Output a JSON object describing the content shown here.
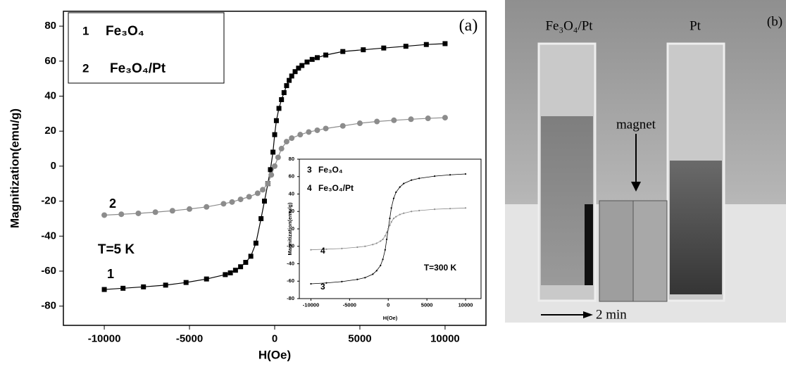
{
  "chart_data": [
    {
      "type": "line",
      "xlabel": "H(Oe)",
      "ylabel": "Magnitization(emu/g)",
      "xlim": [
        -12400,
        12400
      ],
      "ylim": [
        -91,
        88.5
      ],
      "xticks": [
        -10000,
        -5000,
        0,
        5000,
        10000
      ],
      "yticks": [
        -80,
        -60,
        -40,
        -20,
        0,
        20,
        40,
        60,
        80
      ],
      "annotations": [
        "(a)",
        "T=5 K"
      ],
      "series": [
        {
          "name": "Fe₃O₄",
          "label": "1",
          "color": "#000000",
          "marker": "square",
          "x": [
            -10000,
            -8900,
            -7700,
            -6400,
            -5200,
            -4000,
            -2900,
            -2600,
            -2300,
            -2000,
            -1700,
            -1400,
            -1100,
            -800,
            -600,
            -400,
            -250,
            -100,
            0,
            100,
            250,
            400,
            550,
            700,
            850,
            1000,
            1200,
            1400,
            1600,
            1900,
            2200,
            2500,
            3000,
            4000,
            5200,
            6400,
            7700,
            8900,
            10000
          ],
          "values": [
            -70.5,
            -69.8,
            -69,
            -68,
            -66.5,
            -64.5,
            -62,
            -61,
            -59.5,
            -57.5,
            -55,
            -51.5,
            -44,
            -30,
            -20,
            -10,
            -2,
            8,
            18,
            26,
            33,
            38,
            42,
            46,
            49,
            51.5,
            54,
            56,
            57.5,
            59.5,
            61,
            62,
            63.5,
            65.5,
            66.5,
            67.5,
            68.5,
            69.5,
            70
          ]
        },
        {
          "name": "Fe₃O₄/Pt",
          "label": "2",
          "color": "#8c8c8c",
          "marker": "circle",
          "x": [
            -10000,
            -9000,
            -8000,
            -7000,
            -6000,
            -5000,
            -4000,
            -3000,
            -2500,
            -2000,
            -1500,
            -1000,
            -700,
            -400,
            -200,
            0,
            200,
            400,
            700,
            1000,
            1500,
            2000,
            2500,
            3000,
            4000,
            5000,
            6000,
            7000,
            8000,
            9000,
            10000
          ],
          "values": [
            -28,
            -27.5,
            -27,
            -26.3,
            -25.5,
            -24.5,
            -23.3,
            -21.5,
            -20.5,
            -19,
            -17.5,
            -15.5,
            -13.5,
            -10,
            -5,
            0,
            5,
            10,
            14,
            16,
            18,
            19.5,
            20.5,
            21.5,
            23,
            24.5,
            25.5,
            26.2,
            26.8,
            27.3,
            27.7
          ]
        }
      ]
    },
    {
      "type": "line",
      "xlabel": "H(Oe)",
      "ylabel": "Magnitization(emu/g)",
      "xlim": [
        -11500,
        12000
      ],
      "ylim": [
        -80,
        80
      ],
      "xticks": [
        -10000,
        -5000,
        0,
        5000,
        10000
      ],
      "yticks": [
        -80,
        -60,
        -40,
        -20,
        0,
        20,
        40,
        60,
        80
      ],
      "annotations": [
        "T=300 K"
      ],
      "series": [
        {
          "name": "Fe₃O₄",
          "label": "3",
          "color": "#000000",
          "marker": "dot",
          "x": [
            -10000,
            -8000,
            -6000,
            -4000,
            -3000,
            -2000,
            -1500,
            -1000,
            -700,
            -400,
            -200,
            0,
            200,
            400,
            700,
            1000,
            1500,
            2000,
            3000,
            4000,
            6000,
            8000,
            10000
          ],
          "values": [
            -63,
            -62,
            -60.5,
            -58,
            -56,
            -52,
            -48,
            -42,
            -35,
            -24,
            -12,
            0,
            12,
            24,
            35,
            42,
            48,
            52,
            56,
            58,
            60.5,
            62,
            63
          ]
        },
        {
          "name": "Fe₃O₄/Pt",
          "label": "4",
          "color": "#8c8c8c",
          "marker": "dot",
          "x": [
            -10000,
            -8000,
            -6000,
            -4000,
            -3000,
            -2000,
            -1500,
            -1000,
            -700,
            -400,
            -200,
            0,
            200,
            400,
            700,
            1000,
            1500,
            2000,
            3000,
            4000,
            6000,
            8000,
            10000
          ],
          "values": [
            -24,
            -23.3,
            -22.5,
            -21,
            -20,
            -18,
            -16.5,
            -14,
            -12,
            -8,
            -4,
            0,
            4,
            8,
            12,
            14,
            16.5,
            18,
            20,
            21,
            22.5,
            23.3,
            24
          ]
        }
      ]
    }
  ],
  "photo": {
    "labels": [
      "Fe₃O₄/Pt",
      "Pt",
      "(b)",
      "magnet",
      "2 min"
    ]
  }
}
